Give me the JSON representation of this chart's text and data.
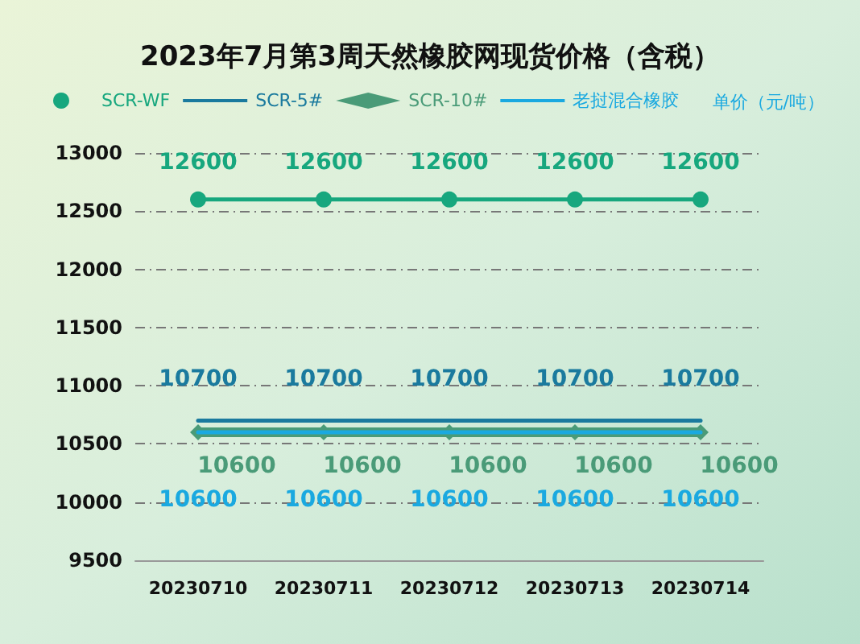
{
  "chart_data": {
    "type": "line",
    "title": "2023年7月第3周天然橡胶网现货价格（含税）",
    "ylabel": "单价（元/吨）",
    "categories": [
      "20230710",
      "20230711",
      "20230712",
      "20230713",
      "20230714"
    ],
    "series": [
      {
        "name": "SCR-WF",
        "color": "#17a77e",
        "marker": "circle",
        "values": [
          12600,
          12600,
          12600,
          12600,
          12600
        ]
      },
      {
        "name": "SCR-5#",
        "color": "#1a7a9e",
        "marker": "none",
        "values": [
          10700,
          10700,
          10700,
          10700,
          10700
        ]
      },
      {
        "name": "SCR-10#",
        "color": "#4a9b78",
        "marker": "diamond",
        "values": [
          10600,
          10600,
          10600,
          10600,
          10600
        ]
      },
      {
        "name": "老挝混合橡胶",
        "color": "#1aa9e0",
        "marker": "none",
        "values": [
          10600,
          10600,
          10600,
          10600,
          10600
        ]
      }
    ],
    "ylim": [
      9500,
      13000
    ],
    "yticks": [
      9500,
      10000,
      10500,
      11000,
      11500,
      12000,
      12500,
      13000
    ],
    "grid": "y",
    "legend": "top",
    "line_style": "solid",
    "data_labels": true
  }
}
